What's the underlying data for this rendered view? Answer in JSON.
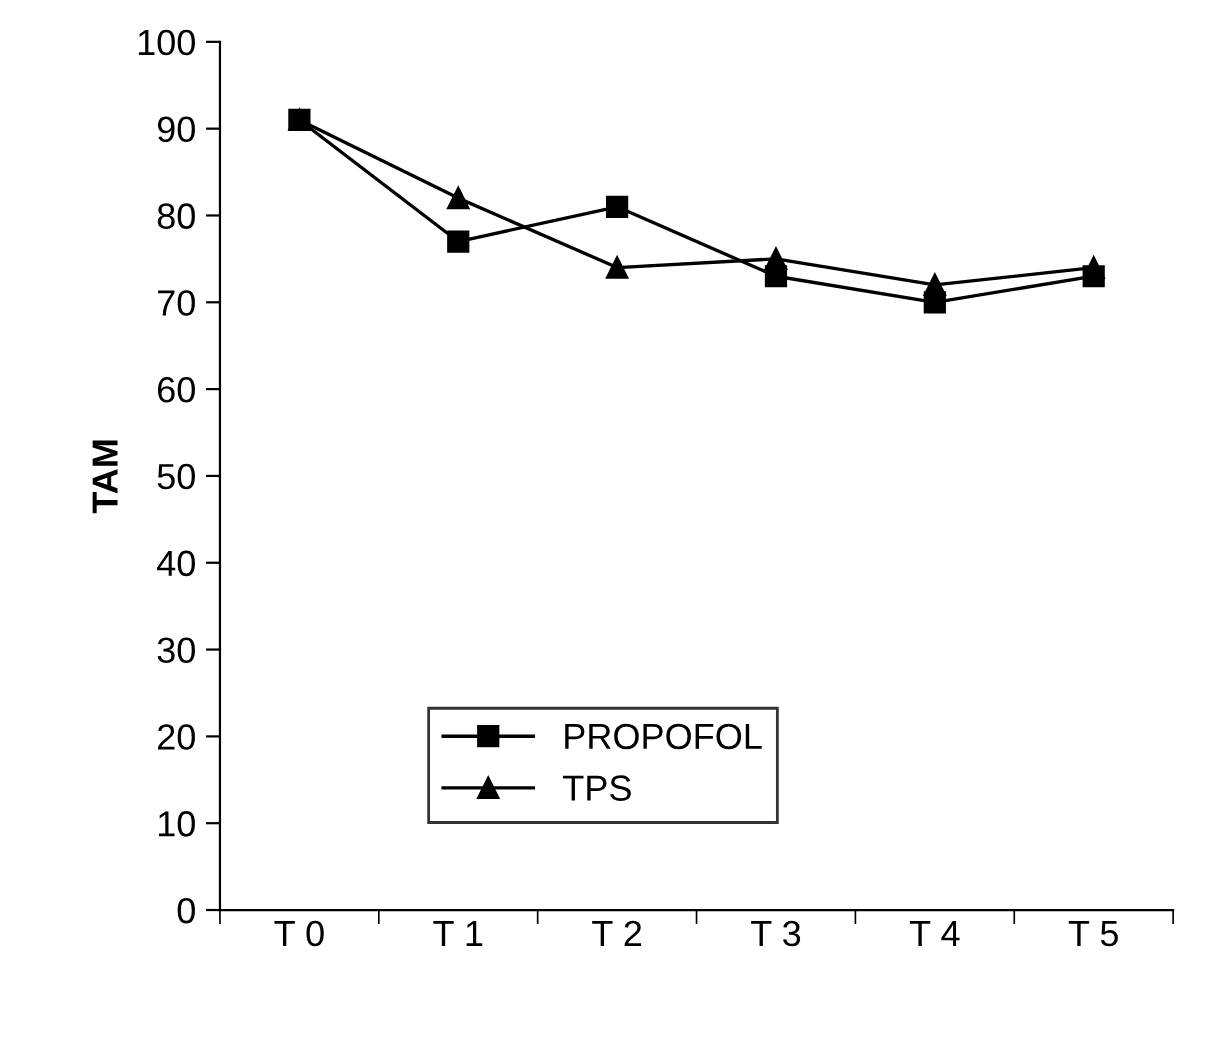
{
  "chart_data": {
    "type": "line",
    "ylabel": "TAM",
    "categories": [
      "T 0",
      "T 1",
      "T 2",
      "T 3",
      "T 4",
      "T 5"
    ],
    "series": [
      {
        "name": "PROPOFOL",
        "color": "#000000",
        "marker": "square",
        "values": [
          91,
          77,
          81,
          73,
          70,
          73
        ]
      },
      {
        "name": "TPS",
        "color": "#000000",
        "marker": "triangle",
        "values": [
          91,
          82,
          74,
          75,
          72,
          74
        ]
      }
    ],
    "ylim": [
      0,
      100
    ],
    "yticks": [
      0,
      10,
      20,
      30,
      40,
      50,
      60,
      70,
      80,
      90,
      100
    ],
    "grid": false,
    "legend": "bottom left",
    "line_style": "solid"
  }
}
